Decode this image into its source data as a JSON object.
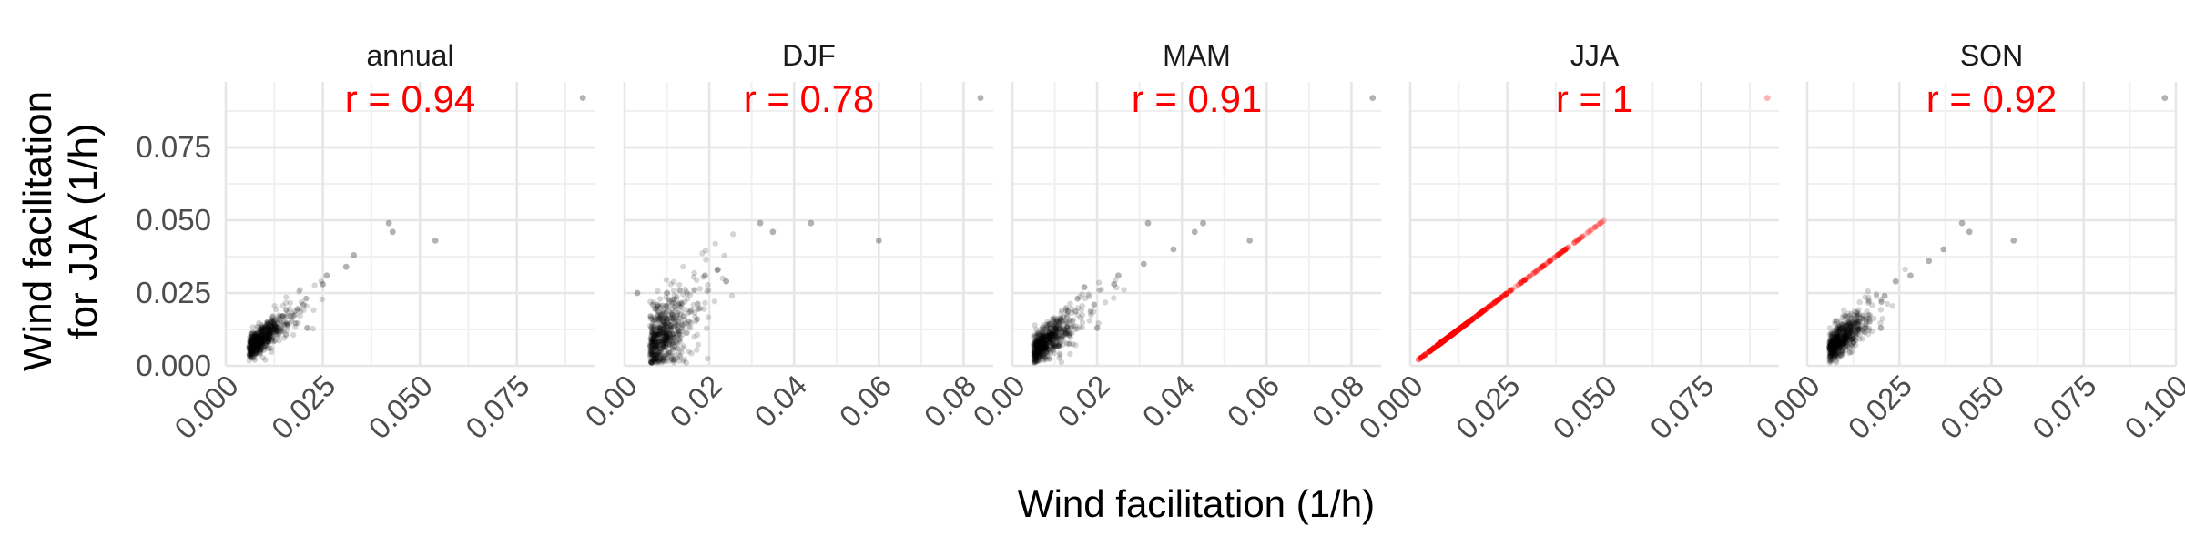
{
  "figure": {
    "ylabel_line1": "Wind facilitation",
    "ylabel_line2": "for JJA (1/h)",
    "xlabel": "Wind facilitation (1/h)",
    "annotation_color": "#ff0000",
    "point_color": "#000000",
    "highlight_color": "#ff0000"
  },
  "chart_data": [
    {
      "type": "scatter",
      "panel": "annual",
      "title": "annual",
      "annotation": "r = 0.94",
      "r": 0.94,
      "xlim": [
        0,
        0.095
      ],
      "ylim": [
        0,
        0.0975
      ],
      "xticks": [
        0,
        0.025,
        0.05,
        0.075
      ],
      "xtick_labels": [
        "0.000",
        "0.025",
        "0.050",
        "0.075"
      ],
      "yticks": [
        0,
        0.025,
        0.05,
        0.075
      ],
      "ytick_labels": [
        "0.000",
        "0.025",
        "0.050",
        "0.075"
      ],
      "point_color": "#000000",
      "point_count": 600,
      "bulk": {
        "center_x": 0.008,
        "center_y": 0.008,
        "slope": 1.0
      },
      "outliers": [
        [
          0.092,
          0.092
        ],
        [
          0.054,
          0.043
        ],
        [
          0.042,
          0.049
        ],
        [
          0.043,
          0.046
        ],
        [
          0.033,
          0.038
        ],
        [
          0.031,
          0.034
        ],
        [
          0.026,
          0.031
        ],
        [
          0.025,
          0.028
        ],
        [
          0.02,
          0.021
        ],
        [
          0.021,
          0.013
        ]
      ]
    },
    {
      "type": "scatter",
      "panel": "DJF",
      "title": "DJF",
      "annotation": "r = 0.78",
      "r": 0.78,
      "xlim": [
        0,
        0.087
      ],
      "ylim": [
        0,
        0.0975
      ],
      "xticks": [
        0,
        0.02,
        0.04,
        0.06,
        0.08
      ],
      "xtick_labels": [
        "0.00",
        "0.02",
        "0.04",
        "0.06",
        "0.08"
      ],
      "yticks": [
        0,
        0.025,
        0.05,
        0.075
      ],
      "ytick_labels": [
        "0.000",
        "0.025",
        "0.050",
        "0.075"
      ],
      "point_color": "#000000",
      "point_count": 600,
      "bulk": {
        "center_x": 0.008,
        "center_y": 0.008,
        "slope": 1.15
      },
      "outliers": [
        [
          0.084,
          0.092
        ],
        [
          0.06,
          0.043
        ],
        [
          0.044,
          0.049
        ],
        [
          0.032,
          0.049
        ],
        [
          0.035,
          0.046
        ],
        [
          0.022,
          0.033
        ],
        [
          0.019,
          0.031
        ],
        [
          0.024,
          0.029
        ],
        [
          0.01,
          0.025
        ],
        [
          0.003,
          0.025
        ],
        [
          0.014,
          0.017
        ]
      ]
    },
    {
      "type": "scatter",
      "panel": "MAM",
      "title": "MAM",
      "annotation": "r = 0.91",
      "r": 0.91,
      "xlim": [
        0,
        0.087
      ],
      "ylim": [
        0,
        0.0975
      ],
      "xticks": [
        0,
        0.02,
        0.04,
        0.06,
        0.08
      ],
      "xtick_labels": [
        "0.00",
        "0.02",
        "0.04",
        "0.06",
        "0.08"
      ],
      "yticks": [
        0,
        0.025,
        0.05,
        0.075
      ],
      "ytick_labels": [
        "0.000",
        "0.025",
        "0.050",
        "0.075"
      ],
      "point_color": "#000000",
      "point_count": 600,
      "bulk": {
        "center_x": 0.007,
        "center_y": 0.008,
        "slope": 1.05
      },
      "outliers": [
        [
          0.085,
          0.092
        ],
        [
          0.056,
          0.043
        ],
        [
          0.045,
          0.049
        ],
        [
          0.032,
          0.049
        ],
        [
          0.043,
          0.046
        ],
        [
          0.038,
          0.04
        ],
        [
          0.031,
          0.035
        ],
        [
          0.025,
          0.031
        ],
        [
          0.024,
          0.028
        ],
        [
          0.017,
          0.027
        ],
        [
          0.02,
          0.013
        ]
      ]
    },
    {
      "type": "scatter",
      "panel": "JJA",
      "title": "JJA",
      "annotation": "r = 1",
      "r": 1,
      "xlim": [
        0,
        0.095
      ],
      "ylim": [
        0,
        0.0975
      ],
      "xticks": [
        0,
        0.025,
        0.05,
        0.075
      ],
      "xtick_labels": [
        "0.000",
        "0.025",
        "0.050",
        "0.075"
      ],
      "yticks": [
        0,
        0.025,
        0.05,
        0.075
      ],
      "ytick_labels": [
        "0.000",
        "0.025",
        "0.050",
        "0.075"
      ],
      "point_color": "#ff0000",
      "point_count": 600,
      "bulk": {
        "center_x": 0.009,
        "center_y": 0.009,
        "slope": 1.0
      },
      "identity_line": true,
      "outliers": [
        [
          0.092,
          0.092
        ],
        [
          0.049,
          0.049
        ],
        [
          0.046,
          0.046
        ],
        [
          0.043,
          0.043
        ],
        [
          0.038,
          0.038
        ],
        [
          0.034,
          0.034
        ]
      ]
    },
    {
      "type": "scatter",
      "panel": "SON",
      "title": "SON",
      "annotation": "r = 0.92",
      "r": 0.92,
      "xlim": [
        0,
        0.1
      ],
      "ylim": [
        0,
        0.0975
      ],
      "xticks": [
        0,
        0.025,
        0.05,
        0.075,
        0.1
      ],
      "xtick_labels": [
        "0.000",
        "0.025",
        "0.050",
        "0.075",
        "0.100"
      ],
      "yticks": [
        0,
        0.025,
        0.05,
        0.075
      ],
      "ytick_labels": [
        "0.000",
        "0.025",
        "0.050",
        "0.075"
      ],
      "point_color": "#000000",
      "point_count": 600,
      "bulk": {
        "center_x": 0.008,
        "center_y": 0.008,
        "slope": 1.0
      },
      "outliers": [
        [
          0.097,
          0.092
        ],
        [
          0.056,
          0.043
        ],
        [
          0.042,
          0.049
        ],
        [
          0.044,
          0.046
        ],
        [
          0.037,
          0.04
        ],
        [
          0.033,
          0.036
        ],
        [
          0.028,
          0.031
        ],
        [
          0.024,
          0.029
        ],
        [
          0.021,
          0.024
        ],
        [
          0.02,
          0.013
        ]
      ]
    }
  ]
}
